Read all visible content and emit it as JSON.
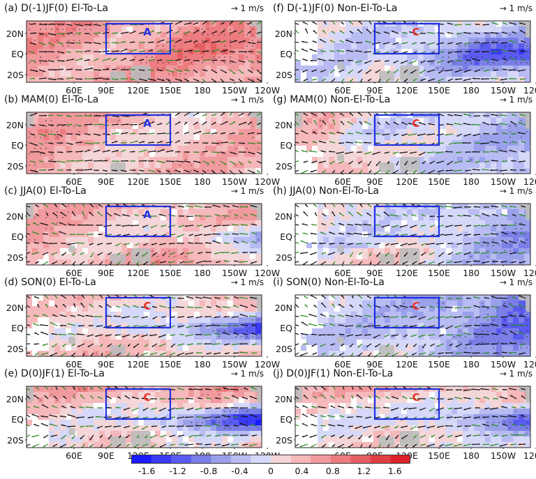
{
  "figure": {
    "scale_label": "→ 1 m/s",
    "lon_labels": [
      "60E",
      "90E",
      "120E",
      "150E",
      "180",
      "150W",
      "120W"
    ],
    "lat_labels": [
      "20N",
      "EQ",
      "20S"
    ],
    "colorbar": {
      "ticks": [
        "-1.6",
        "-1.2",
        "-0.8",
        "-0.4",
        "0",
        "0.4",
        "0.8",
        "1.2",
        "1.6"
      ],
      "range": [
        -1.8,
        1.8
      ],
      "colors": [
        "#1a1aff",
        "#3a3af5",
        "#5a5cf0",
        "#7a7ee6",
        "#9aa0ea",
        "#b8bcf2",
        "#d5d8f8",
        "#f4d6d8",
        "#f5b8bb",
        "#f19a9e",
        "#ec7c80",
        "#e65e62",
        "#e04044",
        "#dc2226"
      ]
    },
    "colors": {
      "box": "#1f2fe0",
      "arrow_sig": "#2c8a22",
      "arrow": "#111111",
      "land": "#bdbdbd",
      "letter": "#e8332a",
      "letter_a": "#2430e0"
    },
    "panels": [
      {
        "title": "(a) D(-1)JF(0) El-To-La",
        "box_letter": "A",
        "pattern": "el_djf"
      },
      {
        "title": "(f) D(-1)JF(0) Non-El-To-La",
        "box_letter": "C",
        "pattern": "non_djf"
      },
      {
        "title": "(b) MAM(0) El-To-La",
        "box_letter": "A",
        "pattern": "el_mam"
      },
      {
        "title": "(g) MAM(0) Non-El-To-La",
        "box_letter": "C",
        "pattern": "non_mam"
      },
      {
        "title": "(c) JJA(0) El-To-La",
        "box_letter": "A",
        "pattern": "el_jja"
      },
      {
        "title": "(h) JJA(0) Non-El-To-La",
        "box_letter": "",
        "pattern": "non_jja"
      },
      {
        "title": "(d) SON(0) El-To-La",
        "box_letter": "C",
        "pattern": "el_son"
      },
      {
        "title": "(i) SON(0) Non-El-To-La",
        "box_letter": "C",
        "pattern": "non_son"
      },
      {
        "title": "(e) D(0)JF(1) El-To-La",
        "box_letter": "C",
        "pattern": "el_djf1"
      },
      {
        "title": "(j) D(0)JF(1) Non-El-To-La",
        "box_letter": "C",
        "pattern": "non_djf1"
      }
    ]
  }
}
